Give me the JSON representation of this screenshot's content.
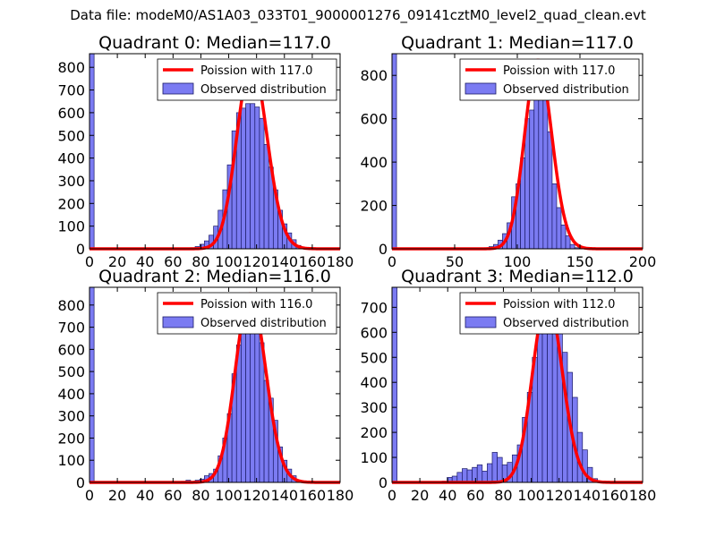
{
  "figure_title": "Data file: modeM0/AS1A03_033T01_9000001276_09141cztM0_level2_quad_clean.evt",
  "colors": {
    "bars": "#7b7bf2",
    "bar_edge": "#1a1a66",
    "poisson_line": "#ff0000"
  },
  "chart_data": [
    {
      "type": "bar",
      "title": "Quadrant 0: Median=117.0",
      "legend": [
        "Poission with 117.0",
        "Observed distribution"
      ],
      "xlim": [
        0,
        180
      ],
      "ylim": [
        0,
        860
      ],
      "xticks": [
        0,
        20,
        40,
        60,
        80,
        100,
        120,
        140,
        160,
        180
      ],
      "yticks": [
        0,
        100,
        200,
        300,
        400,
        500,
        600,
        700,
        800
      ],
      "bin_width": 3.3,
      "bins": [
        0,
        72.6,
        75.9,
        79.2,
        82.5,
        85.8,
        89.1,
        92.4,
        95.7,
        99,
        102.3,
        105.6,
        108.9,
        112.2,
        115.5,
        118.8,
        122.1,
        125.4,
        128.7,
        132,
        135.3,
        138.6,
        141.9,
        145.2,
        148.5
      ],
      "counts": [
        860,
        5,
        10,
        20,
        35,
        60,
        100,
        170,
        260,
        370,
        520,
        600,
        620,
        640,
        640,
        625,
        575,
        460,
        360,
        260,
        170,
        110,
        70,
        40,
        15
      ],
      "poisson_mean": 117.0,
      "poisson_peak": 820
    },
    {
      "type": "bar",
      "title": "Quadrant 1: Median=117.0",
      "legend": [
        "Poission with 117.0",
        "Observed distribution"
      ],
      "xlim": [
        0,
        200
      ],
      "ylim": [
        0,
        900
      ],
      "xticks": [
        0,
        50,
        100,
        150,
        200
      ],
      "yticks": [
        0,
        200,
        400,
        600,
        800
      ],
      "bin_width": 3.6,
      "bins": [
        0,
        73.8,
        77.4,
        81,
        84.6,
        88.2,
        91.8,
        95.4,
        99,
        102.6,
        106.2,
        109.8,
        113.4,
        117,
        120.6,
        124.2,
        127.8,
        131.4,
        135,
        138.6,
        142.2,
        145.8
      ],
      "counts": [
        900,
        5,
        10,
        20,
        40,
        70,
        120,
        240,
        300,
        420,
        600,
        640,
        760,
        810,
        740,
        540,
        300,
        190,
        110,
        60,
        20,
        5
      ],
      "poisson_mean": 117.0,
      "poisson_peak": 870
    },
    {
      "type": "bar",
      "title": "Quadrant 2: Median=116.0",
      "legend": [
        "Poission with 116.0",
        "Observed distribution"
      ],
      "xlim": [
        0,
        180
      ],
      "ylim": [
        0,
        880
      ],
      "xticks": [
        0,
        20,
        40,
        60,
        80,
        100,
        120,
        140,
        160,
        180
      ],
      "yticks": [
        0,
        100,
        200,
        300,
        400,
        500,
        600,
        700,
        800
      ],
      "bin_width": 3.3,
      "bins": [
        0,
        66,
        69.3,
        75.9,
        79.2,
        82.5,
        85.8,
        89.1,
        92.4,
        95.7,
        99,
        102.3,
        105.6,
        108.9,
        112.2,
        115.5,
        118.8,
        122.1,
        125.4,
        128.7,
        132,
        135.3,
        138.6,
        141.9,
        145.2,
        148.5
      ],
      "counts": [
        880,
        5,
        10,
        10,
        15,
        30,
        40,
        60,
        120,
        200,
        310,
        490,
        620,
        720,
        740,
        760,
        780,
        630,
        460,
        380,
        280,
        160,
        100,
        60,
        30,
        10
      ],
      "poisson_mean": 116.0,
      "poisson_peak": 850
    },
    {
      "type": "bar",
      "title": "Quadrant 3: Median=112.0",
      "legend": [
        "Poission with 112.0",
        "Observed distribution"
      ],
      "xlim": [
        0,
        180
      ],
      "ylim": [
        0,
        780
      ],
      "xticks": [
        0,
        20,
        40,
        60,
        80,
        100,
        120,
        140,
        160,
        180
      ],
      "yticks": [
        0,
        100,
        200,
        300,
        400,
        500,
        600,
        700
      ],
      "bin_width": 3.6,
      "bins": [
        0,
        36,
        39.6,
        43.2,
        46.8,
        50.4,
        54,
        57.6,
        61.2,
        64.8,
        68.4,
        72,
        75.6,
        79.2,
        82.8,
        86.4,
        90,
        93.6,
        97.2,
        100.8,
        104.4,
        108,
        111.6,
        115.2,
        118.8,
        122.4,
        126,
        129.6,
        133.2,
        136.8,
        140.4,
        144
      ],
      "counts": [
        780,
        5,
        20,
        25,
        40,
        55,
        50,
        60,
        70,
        45,
        75,
        120,
        100,
        70,
        80,
        110,
        150,
        260,
        360,
        500,
        600,
        640,
        740,
        700,
        640,
        520,
        440,
        340,
        200,
        130,
        60,
        15
      ],
      "poisson_mean": 112.0,
      "poisson_peak": 735
    }
  ]
}
